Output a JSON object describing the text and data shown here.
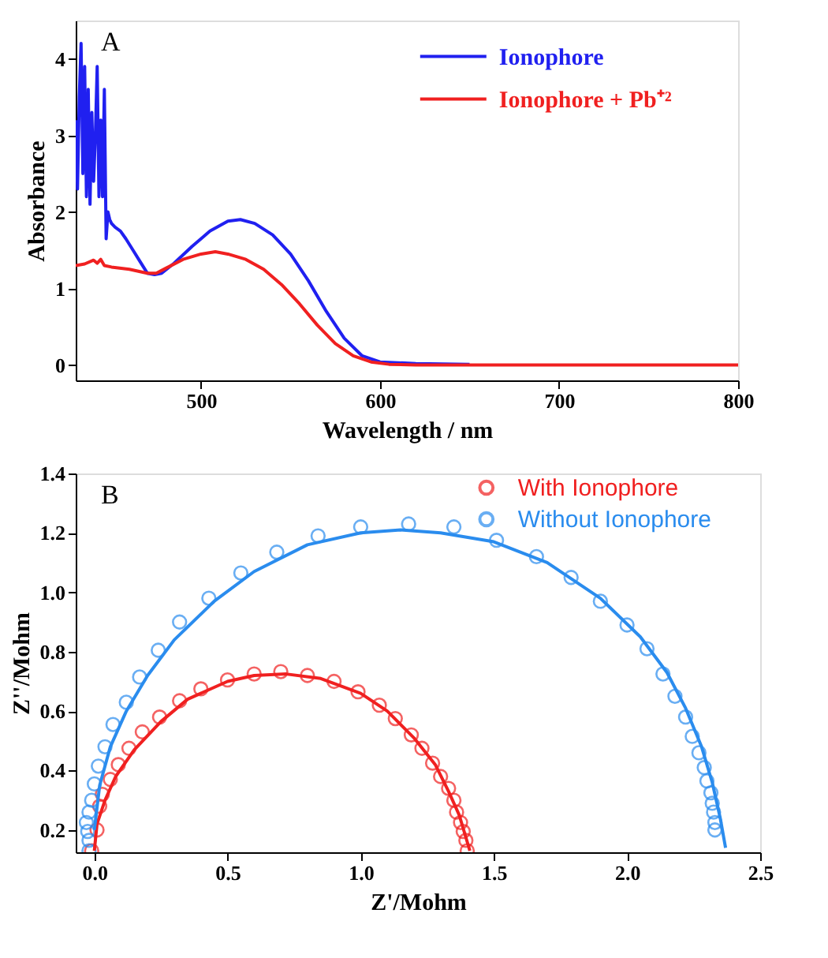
{
  "chart_data": [
    {
      "type": "line",
      "xlabel": "Wavelength / nm",
      "ylabel": "Absorbance",
      "xlim": [
        430,
        800
      ],
      "xticks": [
        500,
        600,
        700,
        800
      ],
      "ylim": [
        -0.2,
        4.5
      ],
      "yticks": [
        0,
        1,
        2,
        3,
        4
      ],
      "grid": false,
      "legend": "top right",
      "annotations": [
        "A"
      ],
      "series": [
        {
          "name": "Ionophore",
          "color": "#2020f0",
          "x": [
            430,
            431,
            432,
            433,
            434,
            435,
            436,
            437,
            438,
            439,
            440,
            441,
            442,
            443,
            444,
            445,
            446,
            447,
            448,
            449,
            450,
            452,
            455,
            458,
            462,
            466,
            470,
            474,
            478,
            485,
            495,
            505,
            515,
            522,
            530,
            540,
            550,
            560,
            570,
            580,
            590,
            600,
            620,
            650
          ],
          "values": [
            3.2,
            2.3,
            3.5,
            4.2,
            2.5,
            3.9,
            2.2,
            3.6,
            2.1,
            3.3,
            2.4,
            3.0,
            3.9,
            2.2,
            3.2,
            2.2,
            3.6,
            1.65,
            2.0,
            1.9,
            1.85,
            1.8,
            1.75,
            1.65,
            1.5,
            1.35,
            1.2,
            1.18,
            1.2,
            1.33,
            1.55,
            1.75,
            1.88,
            1.9,
            1.85,
            1.7,
            1.45,
            1.1,
            0.7,
            0.35,
            0.12,
            0.04,
            0.02,
            0.01
          ]
        },
        {
          "name": "Ionophore + Pb⁺²",
          "color": "#f02020",
          "x": [
            430,
            435,
            440,
            442,
            444,
            446,
            450,
            460,
            470,
            475,
            480,
            490,
            500,
            508,
            515,
            525,
            535,
            545,
            555,
            565,
            575,
            585,
            595,
            605,
            620,
            800
          ],
          "values": [
            1.3,
            1.32,
            1.37,
            1.33,
            1.38,
            1.3,
            1.28,
            1.25,
            1.2,
            1.2,
            1.26,
            1.38,
            1.45,
            1.48,
            1.45,
            1.38,
            1.25,
            1.05,
            0.8,
            0.52,
            0.28,
            0.12,
            0.04,
            0.01,
            0,
            0
          ]
        }
      ]
    },
    {
      "type": "scatter",
      "xlabel": "Z'/Mohm",
      "ylabel": "Z''/Mohm",
      "xlim": [
        -0.07,
        2.5
      ],
      "xticks": [
        {
          "value": 0,
          "label": "0.0"
        },
        0.5,
        {
          "value": 1,
          "label": "1.0"
        },
        1.5,
        {
          "value": 2,
          "label": "2.0"
        },
        2.5
      ],
      "ylim": [
        0.125,
        1.4
      ],
      "yticks": [
        0.2,
        0.4,
        0.6,
        0.8,
        {
          "value": 1,
          "label": "1.0"
        },
        1.2,
        1.4
      ],
      "grid": false,
      "legend": "top right",
      "marker": "circle",
      "annotations": [
        "B"
      ],
      "series": [
        {
          "name": "With Ionophore",
          "color": "#f02020",
          "x": [
            -0.01,
            0.01,
            0.02,
            0.03,
            0.06,
            0.09,
            0.13,
            0.18,
            0.245,
            0.32,
            0.4,
            0.5,
            0.6,
            0.7,
            0.8,
            0.9,
            0.99,
            1.07,
            1.13,
            1.19,
            1.23,
            1.27,
            1.3,
            1.33,
            1.35,
            1.36,
            1.375,
            1.385,
            1.395,
            1.4
          ],
          "values": [
            0.13,
            0.2,
            0.28,
            0.32,
            0.37,
            0.42,
            0.475,
            0.53,
            0.58,
            0.635,
            0.675,
            0.705,
            0.725,
            0.733,
            0.72,
            0.7,
            0.665,
            0.62,
            0.575,
            0.52,
            0.475,
            0.425,
            0.38,
            0.34,
            0.3,
            0.26,
            0.225,
            0.195,
            0.165,
            0.13
          ]
        },
        {
          "name": "Without Ionophore",
          "color": "#2a8cee",
          "x": [
            -0.02,
            -0.02,
            -0.025,
            -0.03,
            -0.02,
            -0.01,
            0.0,
            0.015,
            0.04,
            0.07,
            0.12,
            0.17,
            0.24,
            0.32,
            0.43,
            0.55,
            0.685,
            0.84,
            1.0,
            1.18,
            1.35,
            1.51,
            1.66,
            1.79,
            1.9,
            2.0,
            2.075,
            2.135,
            2.18,
            2.22,
            2.245,
            2.27,
            2.29,
            2.3,
            2.315,
            2.32,
            2.325,
            2.33,
            2.33
          ],
          "values": [
            0.13,
            0.165,
            0.195,
            0.225,
            0.26,
            0.3,
            0.355,
            0.415,
            0.48,
            0.555,
            0.63,
            0.715,
            0.805,
            0.9,
            0.98,
            1.065,
            1.135,
            1.19,
            1.22,
            1.23,
            1.22,
            1.175,
            1.12,
            1.05,
            0.97,
            0.89,
            0.81,
            0.725,
            0.65,
            0.58,
            0.515,
            0.46,
            0.41,
            0.365,
            0.325,
            0.29,
            0.26,
            0.225,
            0.2
          ]
        },
        {
          "type": "line",
          "marker": "none",
          "color": "#f02020",
          "x": [
            0.0,
            0.01,
            0.04,
            0.08,
            0.15,
            0.25,
            0.35,
            0.5,
            0.6,
            0.72,
            0.85,
            1.0,
            1.1,
            1.2,
            1.28,
            1.33,
            1.37,
            1.39,
            1.41
          ],
          "values": [
            0.13,
            0.22,
            0.3,
            0.38,
            0.47,
            0.565,
            0.64,
            0.7,
            0.72,
            0.725,
            0.71,
            0.66,
            0.6,
            0.51,
            0.42,
            0.33,
            0.25,
            0.19,
            0.13
          ]
        },
        {
          "type": "line",
          "marker": "none",
          "color": "#2a8cee",
          "x": [
            0.0,
            0.02,
            0.06,
            0.12,
            0.2,
            0.3,
            0.45,
            0.6,
            0.8,
            1.0,
            1.15,
            1.3,
            1.5,
            1.7,
            1.9,
            2.05,
            2.15,
            2.22,
            2.28,
            2.32,
            2.35,
            2.37
          ],
          "values": [
            0.2,
            0.35,
            0.48,
            0.6,
            0.72,
            0.84,
            0.97,
            1.07,
            1.16,
            1.2,
            1.21,
            1.2,
            1.17,
            1.1,
            0.98,
            0.85,
            0.73,
            0.61,
            0.48,
            0.36,
            0.24,
            0.14
          ]
        }
      ]
    }
  ]
}
